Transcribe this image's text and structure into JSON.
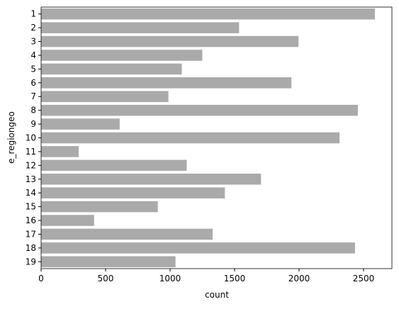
{
  "chart_data": {
    "type": "barh",
    "xlabel": "count",
    "ylabel": "e_regiongeo",
    "categories": [
      "1",
      "2",
      "3",
      "4",
      "5",
      "6",
      "7",
      "8",
      "9",
      "10",
      "11",
      "12",
      "13",
      "14",
      "15",
      "16",
      "17",
      "18",
      "19"
    ],
    "values": [
      2588,
      1535,
      1996,
      1250,
      1091,
      1941,
      987,
      2456,
      609,
      2314,
      291,
      1129,
      1705,
      1425,
      905,
      411,
      1330,
      2434,
      1042
    ],
    "color": "#aaaaaa",
    "xlim": [
      0,
      2720
    ],
    "xticks": [
      0,
      500,
      1000,
      1500,
      2000,
      2500
    ]
  }
}
